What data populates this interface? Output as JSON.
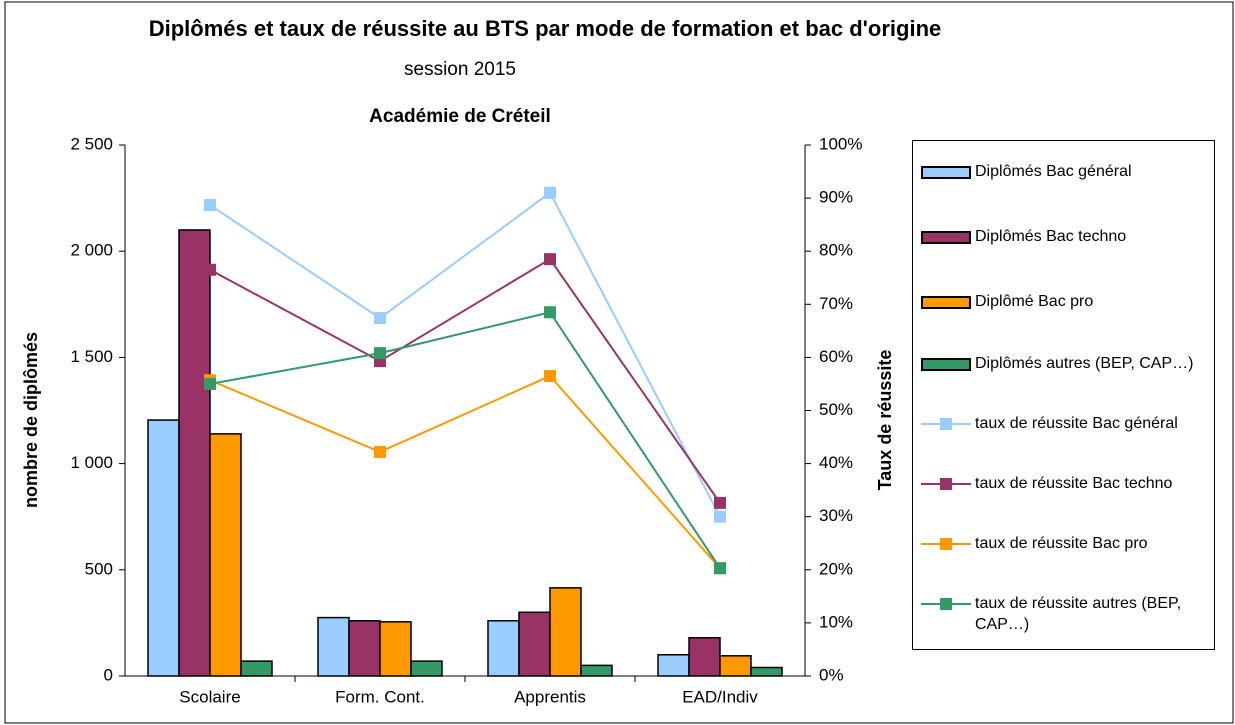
{
  "chart_data": {
    "type": "bar",
    "title": "Diplômés et taux de réussite au BTS  par mode de formation et bac d'origine",
    "subtitle": "session  2015",
    "subtitle2": "Académie de Créteil",
    "ylabel": "nombre de diplômés",
    "y2label": "Taux de réussite",
    "categories": [
      "Scolaire",
      "Form. Cont.",
      "Apprentis",
      "EAD/Indiv"
    ],
    "ylim": [
      0,
      2500
    ],
    "yticks": [
      0,
      500,
      {
        "value": 1000,
        "label": "1 000"
      },
      {
        "value": 1500,
        "label": "1 500"
      },
      {
        "value": 2000,
        "label": "2 000"
      },
      {
        "value": 2500,
        "label": "2 500"
      }
    ],
    "y2lim": [
      0,
      100
    ],
    "y2ticks": [
      {
        "value": 0,
        "label": "0%"
      },
      {
        "value": 10,
        "label": "10%"
      },
      {
        "value": 20,
        "label": "20%"
      },
      {
        "value": 30,
        "label": "30%"
      },
      {
        "value": 40,
        "label": "40%"
      },
      {
        "value": 50,
        "label": "50%"
      },
      {
        "value": 60,
        "label": "60%"
      },
      {
        "value": 70,
        "label": "70%"
      },
      {
        "value": 80,
        "label": "80%"
      },
      {
        "value": 90,
        "label": "90%"
      },
      {
        "value": 100,
        "label": "100%"
      }
    ],
    "series": [
      {
        "name": "Diplômés Bac général",
        "color": "#99ccff",
        "values": [
          1205,
          275,
          260,
          100
        ]
      },
      {
        "name": "Diplômés Bac techno",
        "color": "#993366",
        "values": [
          2100,
          260,
          300,
          180
        ]
      },
      {
        "name": "Diplômé Bac pro",
        "color": "#ff9900",
        "values": [
          1140,
          255,
          415,
          95
        ]
      },
      {
        "name": "Diplômés autres (BEP, CAP…)",
        "color": "#339966",
        "values": [
          70,
          70,
          50,
          40
        ]
      },
      {
        "name": "taux de réussite Bac général",
        "color": "#99ccff",
        "type": "line",
        "axis": "y2",
        "values": [
          88.7,
          67.4,
          91,
          30
        ]
      },
      {
        "name": "taux de réussite Bac techno",
        "color": "#993366",
        "type": "line",
        "axis": "y2",
        "values": [
          76.5,
          59.3,
          78.5,
          32.6
        ]
      },
      {
        "name": "taux de réussite Bac pro",
        "color": "#ff9900",
        "type": "line",
        "axis": "y2",
        "values": [
          55.7,
          42.2,
          56.5,
          20.3
        ]
      },
      {
        "name": "taux de réussite autres (BEP, CAP…)",
        "color": "#339966",
        "type": "line",
        "axis": "y2",
        "values": [
          55,
          60.8,
          68.5,
          20.3
        ]
      }
    ]
  }
}
